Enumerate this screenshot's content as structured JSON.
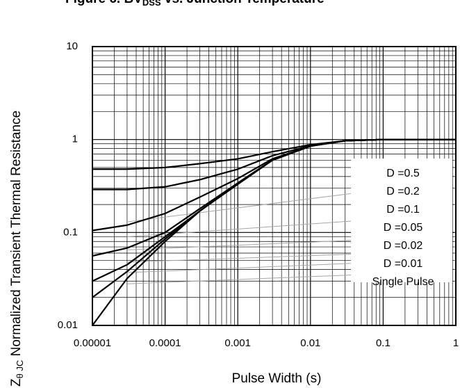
{
  "chart_data": {
    "type": "line",
    "title": {
      "prefix": "Figure 6. BV",
      "subscript": "DSS",
      "suffix": " vs. Junction Temperature"
    },
    "xlabel": "Pulse Width (s)",
    "ylabel": {
      "prefix": "Z",
      "subscript": "θ JC",
      "text": " Normalized Transient  Thermal Resistance"
    },
    "xscale": "log",
    "yscale": "log",
    "xlim": [
      1e-05,
      1
    ],
    "ylim": [
      0.01,
      10
    ],
    "x_ticks": [
      "0.00001",
      "0.0001",
      "0.001",
      "0.01",
      "0.1",
      "1"
    ],
    "y_ticks": [
      "0.01",
      "0.1",
      "1",
      "10"
    ],
    "grid": true,
    "legend_entries": [
      "D =0.5",
      "D =0.2",
      "D =0.1",
      "D =0.05",
      "D =0.02",
      "D =0.01",
      "Single Pulse"
    ],
    "legend_placement": "lower-right",
    "series": [
      {
        "name": "D =0.5",
        "x": [
          1e-05,
          3e-05,
          0.0001,
          0.0003,
          0.001,
          0.003,
          0.01,
          0.03,
          0.1,
          0.3,
          1
        ],
        "y": [
          0.48,
          0.48,
          0.5,
          0.55,
          0.62,
          0.74,
          0.88,
          0.97,
          1.0,
          1.0,
          1.0
        ]
      },
      {
        "name": "D =0.2",
        "x": [
          1e-05,
          3e-05,
          0.0001,
          0.0003,
          0.001,
          0.003,
          0.01,
          0.03,
          0.1,
          0.3,
          1
        ],
        "y": [
          0.29,
          0.29,
          0.31,
          0.37,
          0.48,
          0.67,
          0.86,
          0.97,
          1.0,
          1.0,
          1.0
        ]
      },
      {
        "name": "D =0.1",
        "x": [
          1e-05,
          3e-05,
          0.0001,
          0.0003,
          0.001,
          0.003,
          0.01,
          0.03,
          0.1,
          0.3,
          1
        ],
        "y": [
          0.105,
          0.12,
          0.16,
          0.24,
          0.38,
          0.62,
          0.85,
          0.97,
          1.0,
          1.0,
          1.0
        ]
      },
      {
        "name": "D =0.05",
        "x": [
          1e-05,
          3e-05,
          0.0001,
          0.0003,
          0.001,
          0.003,
          0.01,
          0.03,
          0.1,
          0.3,
          1
        ],
        "y": [
          0.056,
          0.068,
          0.1,
          0.18,
          0.34,
          0.6,
          0.85,
          0.97,
          1.0,
          1.0,
          1.0
        ]
      },
      {
        "name": "D =0.02",
        "x": [
          1e-05,
          3e-05,
          0.0001,
          0.0003,
          0.001,
          0.003,
          0.01,
          0.03,
          0.1,
          0.3,
          1
        ],
        "y": [
          0.03,
          0.045,
          0.09,
          0.17,
          0.34,
          0.6,
          0.85,
          0.97,
          1.0,
          1.0,
          1.0
        ]
      },
      {
        "name": "D =0.01",
        "x": [
          1e-05,
          3e-05,
          0.0001,
          0.0003,
          0.001,
          0.003,
          0.01,
          0.03,
          0.1,
          0.3,
          1
        ],
        "y": [
          0.02,
          0.038,
          0.085,
          0.17,
          0.34,
          0.6,
          0.85,
          0.97,
          1.0,
          1.0,
          1.0
        ]
      },
      {
        "name": "Single Pulse",
        "x": [
          1e-05,
          3e-05,
          0.0001,
          0.0003,
          0.001,
          0.003,
          0.01,
          0.03,
          0.1,
          0.3,
          1
        ],
        "y": [
          0.01,
          0.032,
          0.08,
          0.17,
          0.33,
          0.6,
          0.85,
          0.97,
          1.0,
          1.0,
          1.0
        ]
      }
    ],
    "background_lines": [
      {
        "x": [
          3e-05,
          0.1
        ],
        "y": [
          0.13,
          0.29
        ]
      },
      {
        "x": [
          3e-05,
          0.1
        ],
        "y": [
          0.09,
          0.14
        ]
      },
      {
        "x": [
          3e-05,
          0.1
        ],
        "y": [
          0.065,
          0.085
        ]
      },
      {
        "x": [
          3e-05,
          0.1
        ],
        "y": [
          0.048,
          0.06
        ]
      },
      {
        "x": [
          3e-05,
          0.1
        ],
        "y": [
          0.037,
          0.048
        ]
      },
      {
        "x": [
          3e-05,
          0.1
        ],
        "y": [
          0.028,
          0.036
        ]
      }
    ],
    "colors": {
      "series": "#000000",
      "grid": "#000000",
      "background_lines": "#a6a6a6",
      "legend_bg": "#ffffff"
    }
  }
}
